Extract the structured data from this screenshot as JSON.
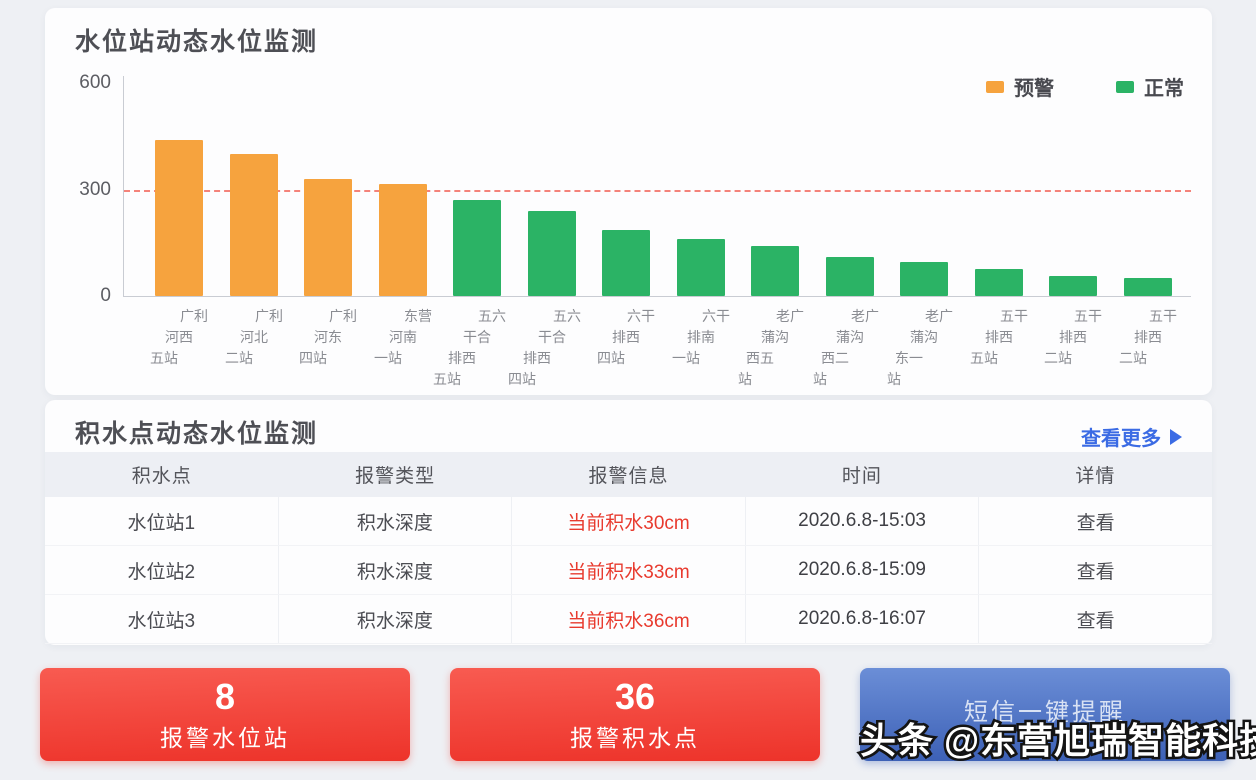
{
  "chart_card": {
    "title": "水位站动态水位监测"
  },
  "chart_data": {
    "type": "bar",
    "title": "水位站动态水位监测",
    "categories": [
      "广利河西五站",
      "广利河北二站",
      "广利河东四站",
      "东营河南一站",
      "五六干合排西五站",
      "五六干合排西四站",
      "六干排西四站",
      "六干排南一站",
      "老广蒲沟西五站",
      "老广蒲沟西二站",
      "老广蒲沟东一站",
      "五干排西五站",
      "五干排西二站",
      "五干排西二站"
    ],
    "values": [
      440,
      400,
      330,
      315,
      270,
      240,
      185,
      160,
      140,
      110,
      95,
      75,
      55,
      50
    ],
    "statuses": [
      "预警",
      "预警",
      "预警",
      "预警",
      "正常",
      "正常",
      "正常",
      "正常",
      "正常",
      "正常",
      "正常",
      "正常",
      "正常",
      "正常"
    ],
    "legend": [
      {
        "label": "预警",
        "color": "#f6a33e"
      },
      {
        "label": "正常",
        "color": "#2bb365"
      }
    ],
    "threshold": 300,
    "threshold_color": "#f2655a",
    "ylim": [
      0,
      600
    ],
    "yticks": [
      0,
      300,
      600
    ],
    "xlabel": "",
    "ylabel": "",
    "grid": false,
    "legend_position": "top-right"
  },
  "table_card": {
    "title": "积水点动态水位监测",
    "more_label": "查看更多",
    "headers": [
      "积水点",
      "报警类型",
      "报警信息",
      "时间",
      "详情"
    ],
    "rows": [
      [
        "水位站1",
        "积水深度",
        "当前积水30cm",
        "2020.6.8-15:03",
        "查看"
      ],
      [
        "水位站2",
        "积水深度",
        "当前积水33cm",
        "2020.6.8-15:09",
        "查看"
      ],
      [
        "水位站3",
        "积水深度",
        "当前积水36cm",
        "2020.6.8-16:07",
        "查看"
      ]
    ]
  },
  "stat_cards": [
    {
      "value": "8",
      "label": "报警水位站"
    },
    {
      "value": "36",
      "label": "报警积水点"
    }
  ],
  "sms_button": {
    "label": "短信一键提醒"
  },
  "watermark": {
    "brand": "头条",
    "handle": "@东营旭瑞智能科技"
  },
  "colors": {
    "warning": "#f6a33e",
    "normal": "#2bb365",
    "alert_red": "#e83a2e",
    "link_blue": "#3b6be4",
    "threshold": "#f2655a",
    "stat_red": "#ed332a",
    "button_blue": "#3d61b6",
    "background": "#eef0f4"
  }
}
